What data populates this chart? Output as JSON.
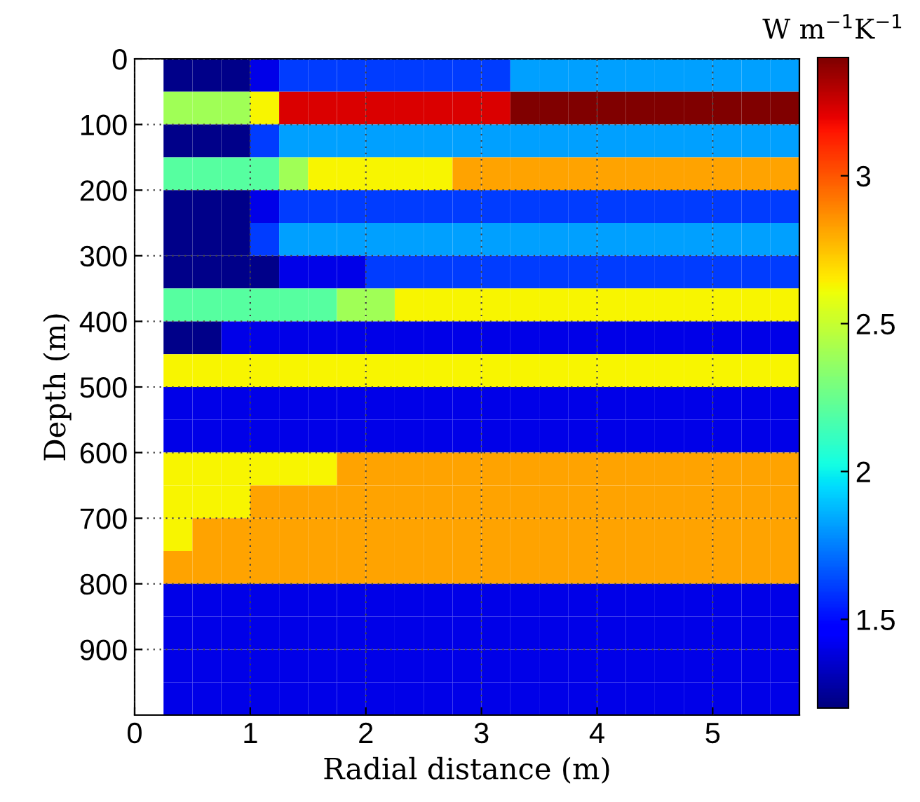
{
  "chart_data": {
    "type": "heatmap",
    "xlabel": "Radial distance (m)",
    "ylabel": "Depth (m)",
    "clabel": "W m$^{−1}$K$^{−1}$",
    "x": [
      0.375,
      0.625,
      0.875,
      1.125,
      1.375,
      1.625,
      1.875,
      2.125,
      2.375,
      2.625,
      2.875,
      3.125,
      3.375,
      3.625,
      3.875,
      4.125,
      4.375,
      4.625,
      4.875,
      5.125,
      5.375,
      5.625
    ],
    "y": [
      25,
      75,
      125,
      175,
      225,
      275,
      325,
      375,
      425,
      475,
      525,
      575,
      625,
      675,
      725,
      775,
      825,
      875,
      925,
      975
    ],
    "xlim": [
      0,
      5.75
    ],
    "xticks": [
      0,
      1,
      2,
      3,
      4,
      5
    ],
    "ylim": [
      1000,
      0
    ],
    "yticks": [
      0,
      100,
      200,
      300,
      400,
      500,
      600,
      700,
      800,
      900
    ],
    "clim": [
      1.2,
      3.4
    ],
    "cticks": [
      1.5,
      2,
      2.5,
      3
    ],
    "grid": true,
    "cells": [
      [
        1.22,
        1.22,
        1.22,
        1.4,
        1.61,
        1.61,
        1.61,
        1.61,
        1.61,
        1.61,
        1.61,
        1.61,
        1.82,
        1.82,
        1.82,
        1.82,
        1.82,
        1.82,
        1.82,
        1.82,
        1.82,
        1.82
      ],
      [
        2.4,
        2.4,
        2.4,
        2.63,
        3.22,
        3.22,
        3.22,
        3.22,
        3.22,
        3.22,
        3.22,
        3.22,
        3.4,
        3.4,
        3.4,
        3.4,
        3.4,
        3.4,
        3.4,
        3.4,
        3.4,
        3.4
      ],
      [
        1.22,
        1.22,
        1.22,
        1.61,
        1.82,
        1.82,
        1.82,
        1.82,
        1.82,
        1.82,
        1.82,
        1.82,
        1.82,
        1.82,
        1.82,
        1.82,
        1.82,
        1.82,
        1.82,
        1.82,
        1.82,
        1.82
      ],
      [
        2.2,
        2.2,
        2.2,
        2.2,
        2.4,
        2.63,
        2.63,
        2.63,
        2.63,
        2.63,
        2.82,
        2.82,
        2.82,
        2.82,
        2.82,
        2.82,
        2.82,
        2.82,
        2.82,
        2.82,
        2.82,
        2.82
      ],
      [
        1.22,
        1.22,
        1.22,
        1.4,
        1.61,
        1.61,
        1.61,
        1.61,
        1.61,
        1.61,
        1.61,
        1.61,
        1.61,
        1.61,
        1.61,
        1.61,
        1.61,
        1.61,
        1.61,
        1.61,
        1.61,
        1.61
      ],
      [
        1.22,
        1.22,
        1.22,
        1.61,
        1.82,
        1.82,
        1.82,
        1.82,
        1.82,
        1.82,
        1.82,
        1.82,
        1.82,
        1.82,
        1.82,
        1.82,
        1.82,
        1.82,
        1.82,
        1.82,
        1.82,
        1.82
      ],
      [
        1.22,
        1.22,
        1.22,
        1.22,
        1.4,
        1.4,
        1.4,
        1.61,
        1.61,
        1.61,
        1.61,
        1.61,
        1.61,
        1.61,
        1.61,
        1.61,
        1.61,
        1.61,
        1.61,
        1.61,
        1.61,
        1.61
      ],
      [
        2.2,
        2.2,
        2.2,
        2.2,
        2.2,
        2.2,
        2.4,
        2.4,
        2.63,
        2.63,
        2.63,
        2.63,
        2.63,
        2.63,
        2.63,
        2.63,
        2.63,
        2.63,
        2.63,
        2.63,
        2.63,
        2.63
      ],
      [
        1.22,
        1.22,
        1.4,
        1.4,
        1.4,
        1.4,
        1.4,
        1.4,
        1.4,
        1.4,
        1.4,
        1.4,
        1.4,
        1.4,
        1.4,
        1.4,
        1.4,
        1.4,
        1.4,
        1.4,
        1.4,
        1.4
      ],
      [
        2.63,
        2.63,
        2.63,
        2.63,
        2.63,
        2.63,
        2.63,
        2.63,
        2.63,
        2.63,
        2.63,
        2.63,
        2.63,
        2.63,
        2.63,
        2.63,
        2.63,
        2.63,
        2.63,
        2.63,
        2.63,
        2.63
      ],
      [
        1.4,
        1.4,
        1.4,
        1.4,
        1.4,
        1.4,
        1.4,
        1.4,
        1.4,
        1.4,
        1.4,
        1.4,
        1.4,
        1.4,
        1.4,
        1.4,
        1.4,
        1.4,
        1.4,
        1.4,
        1.4,
        1.4
      ],
      [
        1.4,
        1.4,
        1.4,
        1.4,
        1.4,
        1.4,
        1.4,
        1.4,
        1.4,
        1.4,
        1.4,
        1.4,
        1.4,
        1.4,
        1.4,
        1.4,
        1.4,
        1.4,
        1.4,
        1.4,
        1.4,
        1.4
      ],
      [
        2.63,
        2.63,
        2.63,
        2.63,
        2.63,
        2.63,
        2.82,
        2.82,
        2.82,
        2.82,
        2.82,
        2.82,
        2.82,
        2.82,
        2.82,
        2.82,
        2.82,
        2.82,
        2.82,
        2.82,
        2.82,
        2.82
      ],
      [
        2.63,
        2.63,
        2.63,
        2.82,
        2.82,
        2.82,
        2.82,
        2.82,
        2.82,
        2.82,
        2.82,
        2.82,
        2.82,
        2.82,
        2.82,
        2.82,
        2.82,
        2.82,
        2.82,
        2.82,
        2.82,
        2.82
      ],
      [
        2.63,
        2.82,
        2.82,
        2.82,
        2.82,
        2.82,
        2.82,
        2.82,
        2.82,
        2.82,
        2.82,
        2.82,
        2.82,
        2.82,
        2.82,
        2.82,
        2.82,
        2.82,
        2.82,
        2.82,
        2.82,
        2.82
      ],
      [
        2.82,
        2.82,
        2.82,
        2.82,
        2.82,
        2.82,
        2.82,
        2.82,
        2.82,
        2.82,
        2.82,
        2.82,
        2.82,
        2.82,
        2.82,
        2.82,
        2.82,
        2.82,
        2.82,
        2.82,
        2.82,
        2.82
      ],
      [
        1.4,
        1.4,
        1.4,
        1.4,
        1.4,
        1.4,
        1.4,
        1.4,
        1.4,
        1.4,
        1.4,
        1.4,
        1.4,
        1.4,
        1.4,
        1.4,
        1.4,
        1.4,
        1.4,
        1.4,
        1.4,
        1.4
      ],
      [
        1.4,
        1.4,
        1.4,
        1.4,
        1.4,
        1.4,
        1.4,
        1.4,
        1.4,
        1.4,
        1.4,
        1.4,
        1.4,
        1.4,
        1.4,
        1.4,
        1.4,
        1.4,
        1.4,
        1.4,
        1.4,
        1.4
      ],
      [
        1.4,
        1.4,
        1.4,
        1.4,
        1.4,
        1.4,
        1.4,
        1.4,
        1.4,
        1.4,
        1.4,
        1.4,
        1.4,
        1.4,
        1.4,
        1.4,
        1.4,
        1.4,
        1.4,
        1.4,
        1.4,
        1.4
      ],
      [
        1.4,
        1.4,
        1.4,
        1.4,
        1.4,
        1.4,
        1.4,
        1.4,
        1.4,
        1.4,
        1.4,
        1.4,
        1.4,
        1.4,
        1.4,
        1.4,
        1.4,
        1.4,
        1.4,
        1.4,
        1.4,
        1.4
      ]
    ]
  }
}
